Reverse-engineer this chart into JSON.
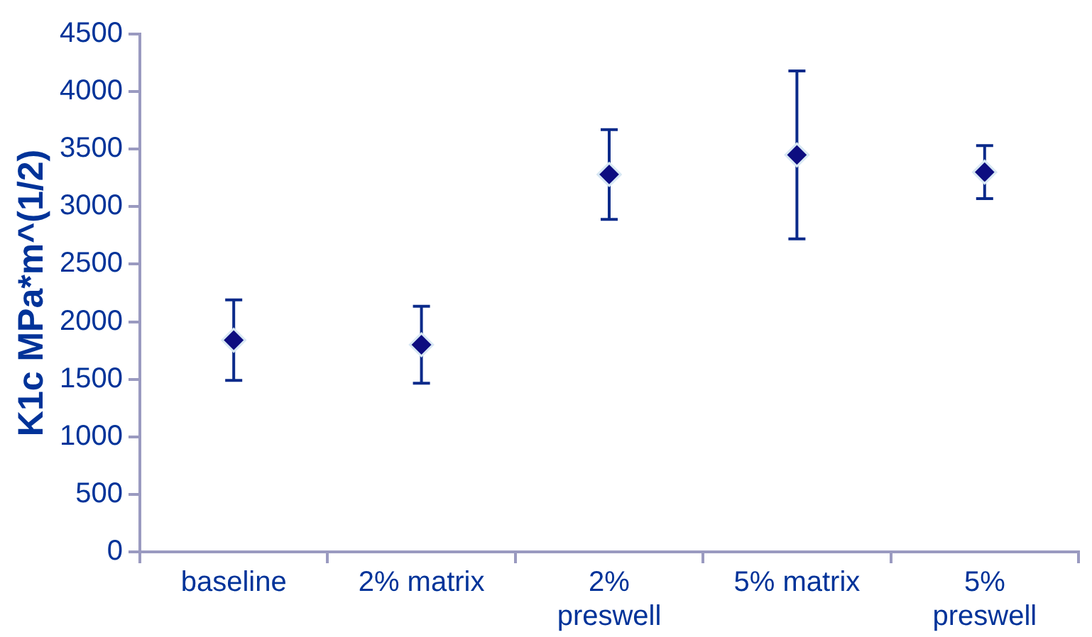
{
  "chart_data": {
    "type": "scatter",
    "ylabel": "K1c MPa*m^(1/2)",
    "categories": [
      "baseline",
      "2% matrix",
      "2% preswell",
      "5% matrix",
      "5% preswell"
    ],
    "series": [
      {
        "color": "#0d0d80",
        "values": [
          1840,
          1800,
          3280,
          3450,
          3300
        ],
        "errors": [
          350,
          335,
          390,
          730,
          230
        ]
      }
    ],
    "ylim": [
      0,
      4500
    ],
    "yticks": [
      0,
      500,
      1000,
      1500,
      2000,
      2500,
      3000,
      3500,
      4000,
      4500
    ],
    "marker": "diamond",
    "grid": false,
    "legend": false
  }
}
